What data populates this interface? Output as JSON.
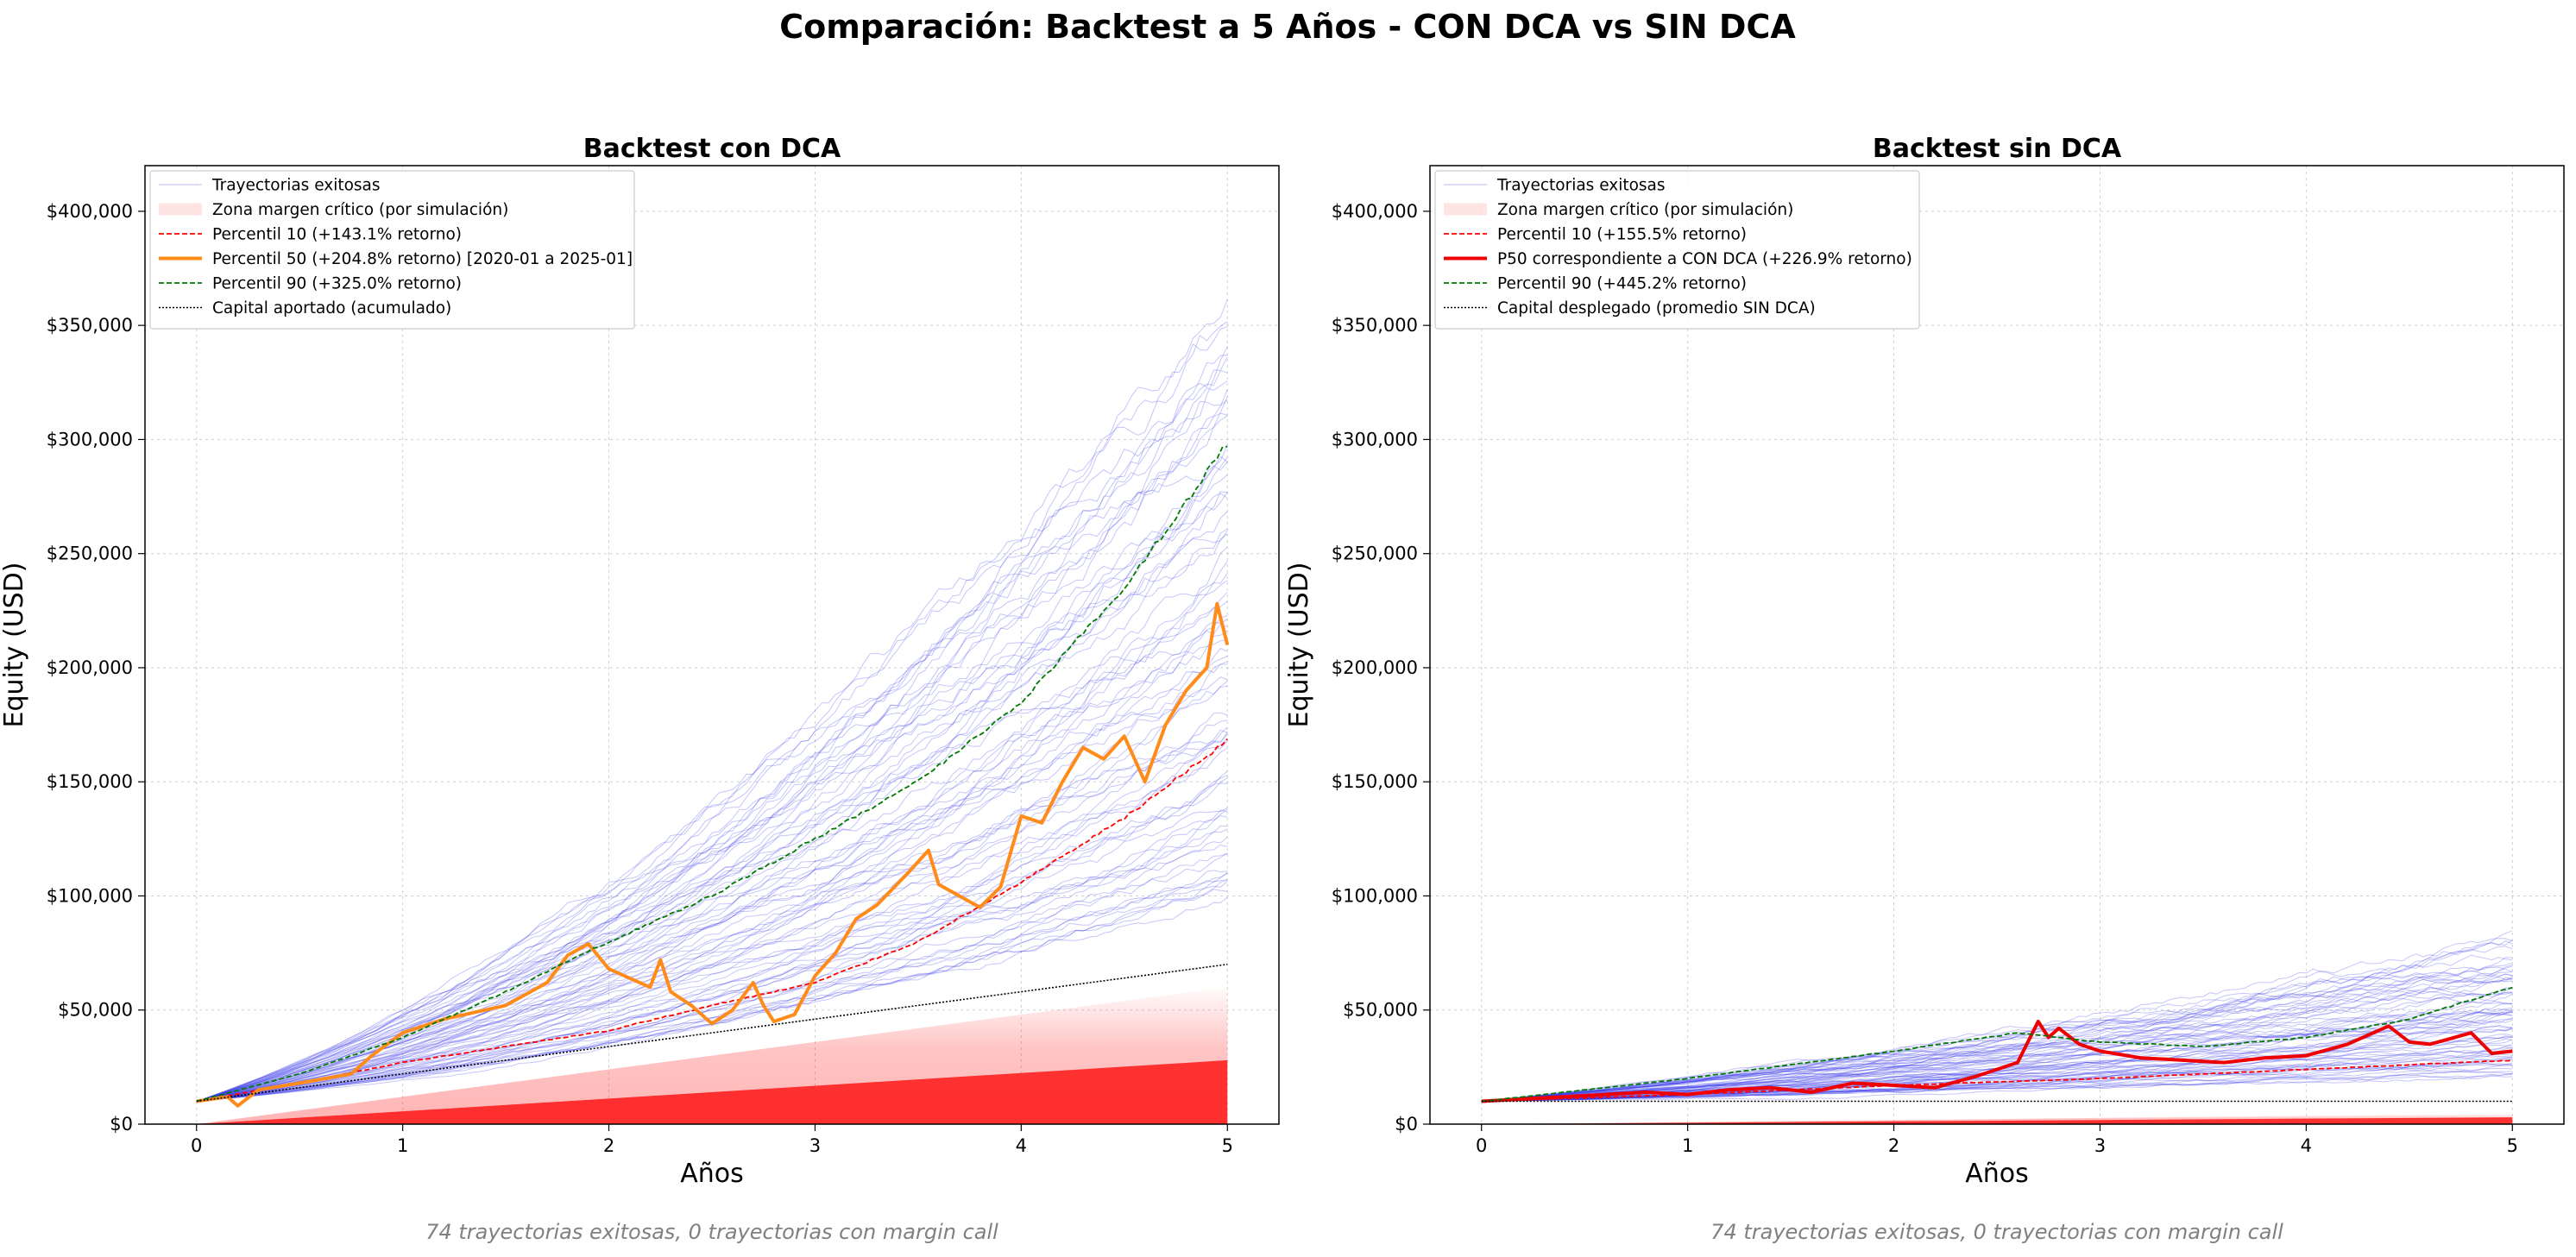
{
  "figure": {
    "title": "Comparación: Backtest a 5 Años - CON DCA vs SIN DCA"
  },
  "colors": {
    "trajectory": "#3333ee",
    "margin_zone": "#ff2020",
    "p10": "#ff0000",
    "p50_dca": "#ff8c1a",
    "p50_nodca": "#ee0000",
    "p90": "#007a00",
    "capital": "#000000"
  },
  "chart_data": [
    {
      "type": "line",
      "id": "dca",
      "title": "Backtest con DCA",
      "xlabel": "Años",
      "ylabel": "Equity (USD)",
      "xlim": [
        -0.25,
        5.25
      ],
      "ylim": [
        0,
        420000
      ],
      "x_ticks": [
        "0",
        "1",
        "2",
        "3",
        "4",
        "5"
      ],
      "y_ticks": [
        "$0",
        "$50,000",
        "$100,000",
        "$150,000",
        "$200,000",
        "$250,000",
        "$300,000",
        "$350,000",
        "$400,000"
      ],
      "grid": true,
      "legend_position": "top-left",
      "legend": [
        "Trayectorias exitosas",
        "Zona margen crítico (por simulación)",
        "Percentil 10 (+143.1% retorno)",
        "Percentil 50 (+204.8% retorno) [2020-01 a 2025-01]",
        "Percentil 90 (+325.0% retorno)",
        "Capital aportado (acumulado)"
      ],
      "trajectories": {
        "count": 74,
        "start": 10000,
        "end_min": 100000,
        "end_max": 360000
      },
      "margin_zone": {
        "start": 0,
        "end_solid": 28000,
        "end_fade": 60000
      },
      "series": [
        {
          "name": "Percentil 10 (+143.1% retorno)",
          "x": [
            0,
            0.5,
            1,
            1.5,
            2,
            2.5,
            3,
            3.5,
            4,
            4.5,
            5
          ],
          "y": [
            10000,
            18000,
            27000,
            34000,
            41000,
            52000,
            62000,
            80000,
            106000,
            134000,
            168000
          ]
        },
        {
          "name": "Percentil 50 (+204.8% retorno) [2020-01 a 2025-01]",
          "x": [
            0,
            0.15,
            0.2,
            0.3,
            0.5,
            0.75,
            0.85,
            1,
            1.2,
            1.5,
            1.7,
            1.8,
            1.9,
            2.0,
            2.1,
            2.2,
            2.25,
            2.3,
            2.4,
            2.5,
            2.6,
            2.7,
            2.75,
            2.8,
            2.9,
            3.0,
            3.1,
            3.2,
            3.3,
            3.45,
            3.55,
            3.6,
            3.7,
            3.8,
            3.9,
            4.0,
            4.1,
            4.2,
            4.3,
            4.4,
            4.5,
            4.6,
            4.7,
            4.8,
            4.9,
            4.95,
            5.0
          ],
          "y": [
            10000,
            12000,
            8000,
            15000,
            18000,
            22000,
            30000,
            40000,
            46000,
            52000,
            62000,
            74000,
            79000,
            68000,
            64000,
            60000,
            72000,
            58000,
            52000,
            44000,
            50000,
            62000,
            52000,
            45000,
            48000,
            65000,
            75000,
            90000,
            96000,
            110000,
            120000,
            105000,
            100000,
            95000,
            104000,
            135000,
            132000,
            150000,
            165000,
            160000,
            170000,
            150000,
            175000,
            190000,
            200000,
            228000,
            210000
          ]
        },
        {
          "name": "Percentil 90 (+325.0% retorno)",
          "x": [
            0,
            0.5,
            1,
            1.5,
            2,
            2.5,
            3,
            3.5,
            4,
            4.5,
            5
          ],
          "y": [
            10000,
            22000,
            38000,
            58000,
            80000,
            100000,
            125000,
            150000,
            185000,
            235000,
            298000
          ]
        },
        {
          "name": "Capital aportado (acumulado)",
          "x": [
            0,
            5
          ],
          "y": [
            10000,
            70000
          ]
        }
      ],
      "footnote": "74 trayectorias exitosas, 0 trayectorias con margin call"
    },
    {
      "type": "line",
      "id": "nodca",
      "title": "Backtest sin DCA",
      "xlabel": "Años",
      "ylabel": "Equity (USD)",
      "xlim": [
        -0.25,
        5.25
      ],
      "ylim": [
        0,
        420000
      ],
      "x_ticks": [
        "0",
        "1",
        "2",
        "3",
        "4",
        "5"
      ],
      "y_ticks": [
        "$0",
        "$50,000",
        "$100,000",
        "$150,000",
        "$200,000",
        "$250,000",
        "$300,000",
        "$350,000",
        "$400,000"
      ],
      "grid": true,
      "legend_position": "top-left",
      "legend": [
        "Trayectorias exitosas",
        "Zona margen crítico (por simulación)",
        "Percentil 10 (+155.5% retorno)",
        "P50 correspondiente a CON DCA (+226.9% retorno)",
        "Percentil 90 (+445.2% retorno)",
        "Capital desplegado (promedio SIN DCA)"
      ],
      "trajectories": {
        "count": 74,
        "start": 10000,
        "end_min": 22000,
        "end_max": 80000
      },
      "margin_zone": {
        "start": 0,
        "end_solid": 3000,
        "end_fade": 4500
      },
      "series": [
        {
          "name": "Percentil 10 (+155.5% retorno)",
          "x": [
            0,
            1,
            2,
            3,
            4,
            5
          ],
          "y": [
            10000,
            13000,
            17000,
            20000,
            24000,
            28000
          ]
        },
        {
          "name": "P50 correspondiente a CON DCA (+226.9% retorno)",
          "x": [
            0,
            0.2,
            0.4,
            0.6,
            0.8,
            1.0,
            1.2,
            1.4,
            1.6,
            1.8,
            2.0,
            2.2,
            2.4,
            2.6,
            2.7,
            2.75,
            2.8,
            2.9,
            3.0,
            3.2,
            3.4,
            3.6,
            3.8,
            4.0,
            4.2,
            4.4,
            4.5,
            4.6,
            4.8,
            4.9,
            5.0
          ],
          "y": [
            10000,
            11000,
            12000,
            13000,
            14000,
            13000,
            15000,
            16000,
            14000,
            18000,
            17000,
            16000,
            21000,
            27000,
            45000,
            38000,
            42000,
            35000,
            32000,
            29000,
            28000,
            27000,
            29000,
            30000,
            35000,
            43000,
            36000,
            35000,
            40000,
            31000,
            32000
          ]
        },
        {
          "name": "Percentil 90 (+445.2% retorno)",
          "x": [
            0,
            1,
            2,
            2.6,
            3,
            3.5,
            4,
            4.5,
            5
          ],
          "y": [
            10000,
            20000,
            32000,
            40000,
            36000,
            34000,
            38000,
            46000,
            60000
          ]
        },
        {
          "name": "Capital desplegado (promedio SIN DCA)",
          "x": [
            0,
            5
          ],
          "y": [
            10000,
            10000
          ]
        }
      ],
      "footnote": "74 trayectorias exitosas, 0 trayectorias con margin call"
    }
  ]
}
